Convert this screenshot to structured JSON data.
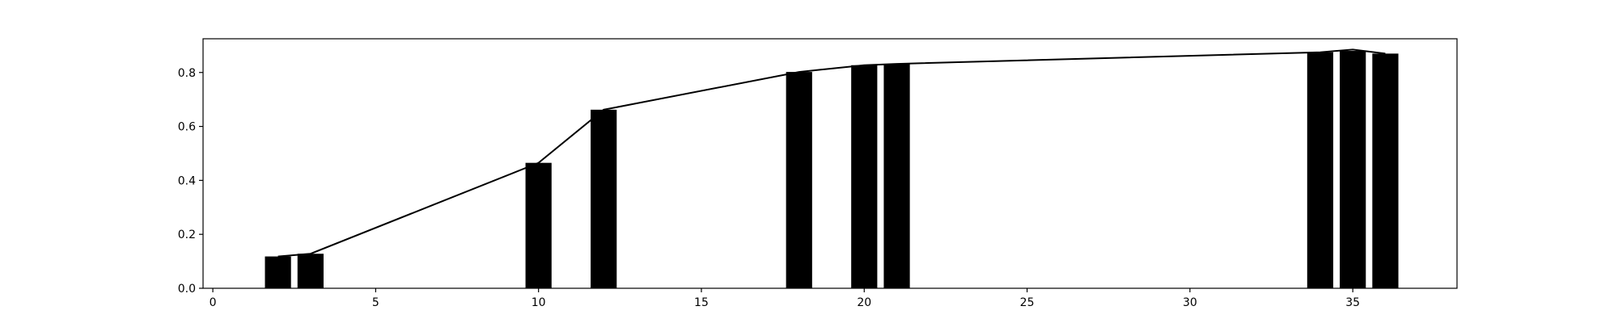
{
  "chart_data": {
    "type": "bar",
    "title": "",
    "xlabel": "",
    "ylabel": "",
    "xlim": [
      -0.3,
      38.2
    ],
    "ylim": [
      0,
      0.925
    ],
    "xticks": [
      0,
      5,
      10,
      15,
      20,
      25,
      30,
      35
    ],
    "yticks": [
      0.0,
      0.2,
      0.4,
      0.6,
      0.8
    ],
    "ytick_labels": [
      "0.0",
      "0.2",
      "0.4",
      "0.6",
      "0.8"
    ],
    "bar_width": 0.8,
    "grid": false,
    "series": [
      {
        "type": "bar",
        "color": "#000000",
        "x": [
          2,
          3,
          10,
          12,
          18,
          20,
          21,
          34,
          35,
          36
        ],
        "values": [
          0.118,
          0.128,
          0.465,
          0.662,
          0.802,
          0.827,
          0.832,
          0.875,
          0.88,
          0.87
        ]
      },
      {
        "type": "line",
        "color": "#000000",
        "x": [
          2,
          3,
          10,
          12,
          18,
          20,
          21,
          34,
          35,
          36
        ],
        "values": [
          0.118,
          0.128,
          0.465,
          0.662,
          0.802,
          0.827,
          0.832,
          0.875,
          0.885,
          0.87
        ]
      }
    ]
  }
}
